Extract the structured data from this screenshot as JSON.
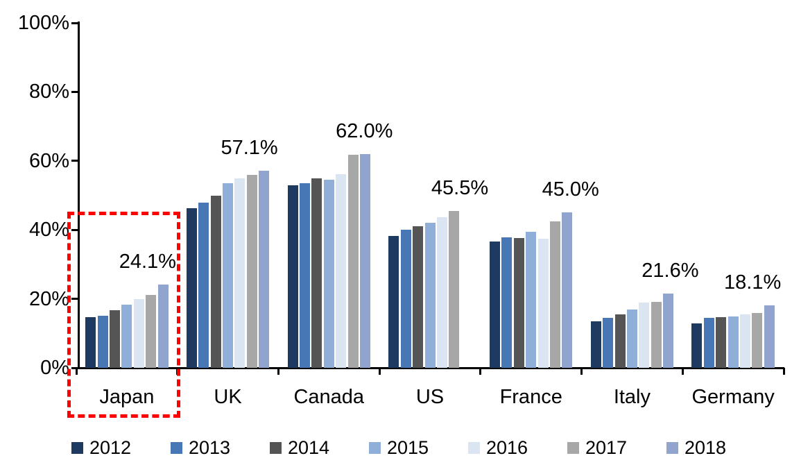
{
  "chart_data": {
    "type": "bar",
    "title": "",
    "xlabel": "",
    "ylabel": "",
    "categories": [
      "Japan",
      "UK",
      "Canada",
      "US",
      "France",
      "Italy",
      "Germany"
    ],
    "series": [
      {
        "name": "2012",
        "color": "#1F3A60",
        "values": [
          14.7,
          46.3,
          53.0,
          38.3,
          36.6,
          13.5,
          12.9
        ]
      },
      {
        "name": "2013",
        "color": "#4778B5",
        "values": [
          15.0,
          47.9,
          53.5,
          40.0,
          37.8,
          14.4,
          14.4
        ]
      },
      {
        "name": "2014",
        "color": "#555555",
        "values": [
          16.7,
          50.0,
          54.9,
          41.1,
          37.7,
          15.5,
          14.6
        ]
      },
      {
        "name": "2015",
        "color": "#8FAFD9",
        "values": [
          18.3,
          53.5,
          54.6,
          42.1,
          39.4,
          16.9,
          14.9
        ]
      },
      {
        "name": "2016",
        "color": "#DBE5F2",
        "values": [
          20.0,
          55.0,
          56.2,
          43.6,
          37.5,
          18.9,
          15.4
        ]
      },
      {
        "name": "2017",
        "color": "#A7A7A7",
        "values": [
          21.1,
          56.0,
          61.7,
          45.5,
          42.4,
          19.2,
          15.9
        ]
      },
      {
        "name": "2018",
        "color": "#90A4CD",
        "values": [
          24.1,
          57.1,
          62.0,
          null,
          45.0,
          21.6,
          18.1
        ]
      }
    ],
    "data_labels": [
      "24.1%",
      "57.1%",
      "62.0%",
      "45.5%",
      "45.0%",
      "21.6%",
      "18.1%"
    ],
    "y_ticks": [
      {
        "value": 0,
        "label": "0%"
      },
      {
        "value": 20,
        "label": "20%"
      },
      {
        "value": 40,
        "label": "40%"
      },
      {
        "value": 60,
        "label": "60%"
      },
      {
        "value": 80,
        "label": "80%"
      },
      {
        "value": 100,
        "label": "100%"
      }
    ],
    "ylim": [
      0,
      100
    ],
    "grid": false,
    "legend_position": "bottom",
    "legend_entries": [
      "2012",
      "2013",
      "2014",
      "2015",
      "2016",
      "2017",
      "2018"
    ],
    "annotations": {
      "highlight_category": "Japan",
      "highlight_style": "red-dashed-rectangle",
      "highlight_color": "#FF0000"
    }
  }
}
